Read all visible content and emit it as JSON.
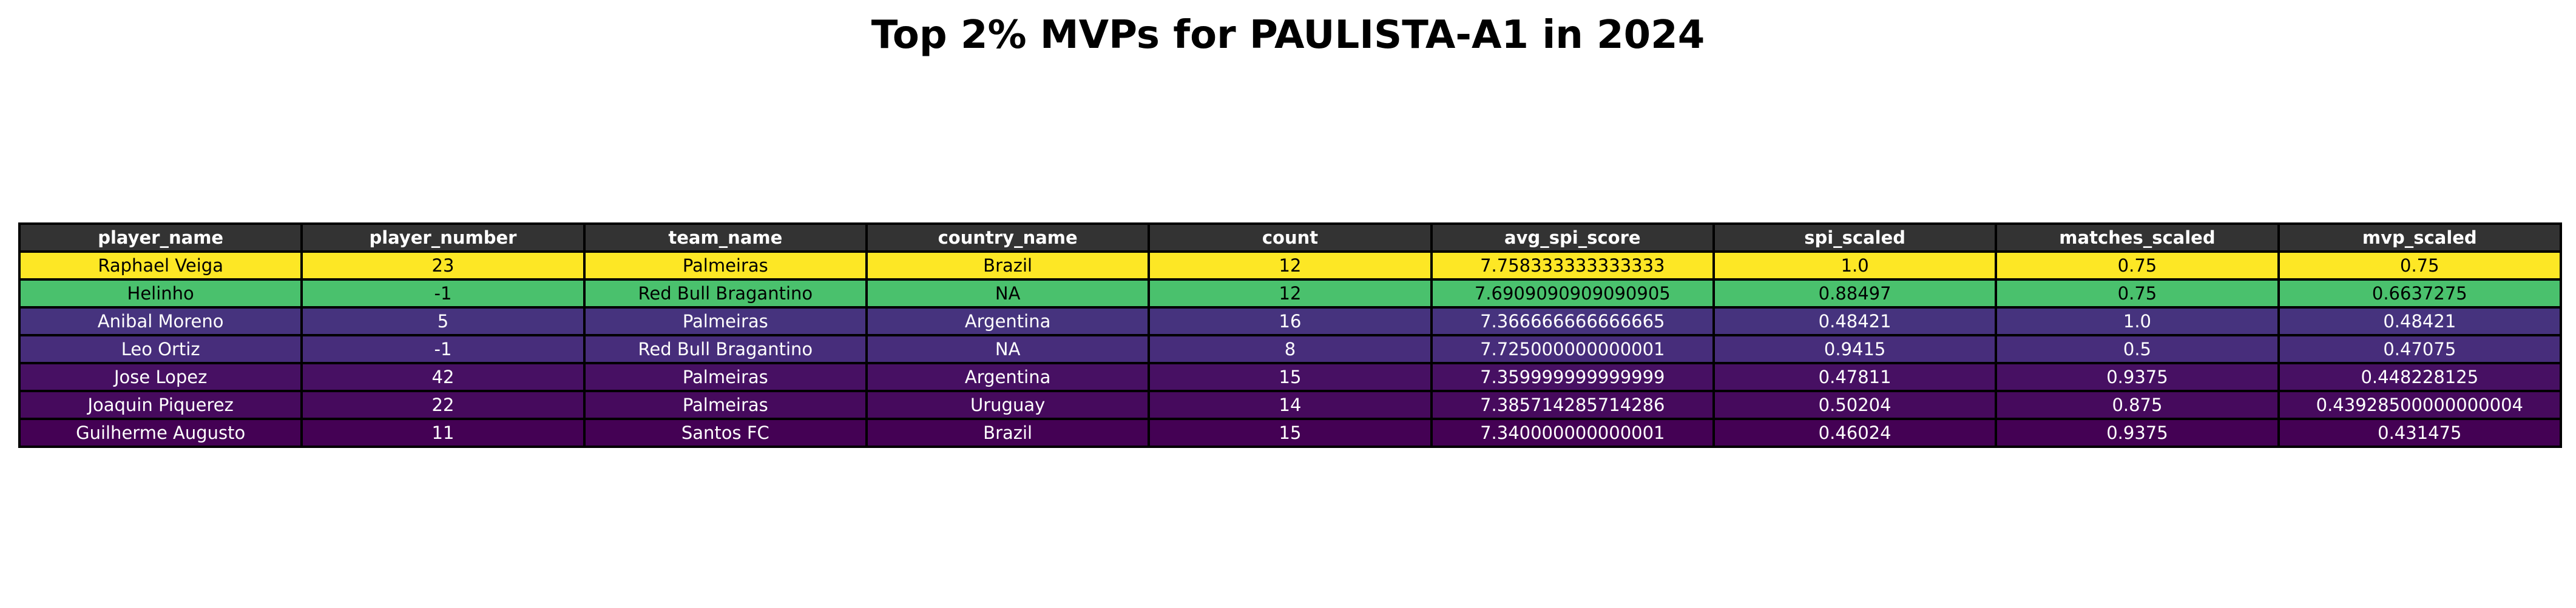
{
  "chart_data": {
    "type": "table",
    "title": "Top 2% MVPs for PAULISTA-A1 in 2024",
    "header_color": "#333333",
    "columns": [
      "player_name",
      "player_number",
      "team_name",
      "country_name",
      "count",
      "avg_spi_score",
      "spi_scaled",
      "matches_scaled",
      "mvp_scaled"
    ],
    "rows": [
      {
        "cells": [
          "Raphael Veiga",
          "23",
          "Palmeiras",
          "Brazil",
          "12",
          "7.758333333333333",
          "1.0",
          "0.75",
          "0.75"
        ],
        "bg": "#fde725",
        "fg": "#000000"
      },
      {
        "cells": [
          "Helinho",
          "-1",
          "Red Bull Bragantino",
          "NA",
          "12",
          "7.6909090909090905",
          "0.88497",
          "0.75",
          "0.6637275"
        ],
        "bg": "#4ac16d",
        "fg": "#000000"
      },
      {
        "cells": [
          "Anibal Moreno",
          "5",
          "Palmeiras",
          "Argentina",
          "16",
          "7.366666666666665",
          "0.48421",
          "1.0",
          "0.48421"
        ],
        "bg": "#46337e",
        "fg": "#ffffff"
      },
      {
        "cells": [
          "Leo Ortiz",
          "-1",
          "Red Bull Bragantino",
          "NA",
          "8",
          "7.725000000000001",
          "0.9415",
          "0.5",
          "0.47075"
        ],
        "bg": "#472d7b",
        "fg": "#ffffff"
      },
      {
        "cells": [
          "Jose Lopez",
          "42",
          "Palmeiras",
          "Argentina",
          "15",
          "7.359999999999999",
          "0.47811",
          "0.9375",
          "0.448228125"
        ],
        "bg": "#471063",
        "fg": "#ffffff"
      },
      {
        "cells": [
          "Joaquin Piquerez",
          "22",
          "Palmeiras",
          "Uruguay",
          "14",
          "7.385714285714286",
          "0.50204",
          "0.875",
          "0.43928500000000004"
        ],
        "bg": "#460a5d",
        "fg": "#ffffff"
      },
      {
        "cells": [
          "Guilherme Augusto",
          "11",
          "Santos FC",
          "Brazil",
          "15",
          "7.340000000000001",
          "0.46024",
          "0.9375",
          "0.431475"
        ],
        "bg": "#440154",
        "fg": "#ffffff"
      }
    ]
  }
}
